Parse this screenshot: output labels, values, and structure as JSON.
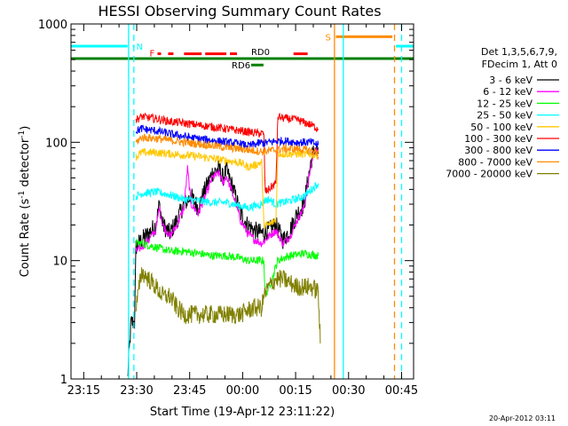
{
  "chart_data": {
    "type": "line",
    "title": "HESSI Observing Summary Count Rates",
    "xlabel": "Start Time (19-Apr-12 23:11:22)",
    "ylabel_main": "Count Rate (s",
    "ylabel_sup1": "-1",
    "ylabel_mid": " detector",
    "ylabel_sup2": "-1",
    "ylabel_end": ")",
    "y_scale": "log",
    "ylim": [
      1,
      1000
    ],
    "x_unit": "minutes since 23:11:22",
    "xlim": [
      0,
      97
    ],
    "x_ticks": [
      {
        "label": "23:15",
        "value": 3.6
      },
      {
        "label": "23:30",
        "value": 18.6
      },
      {
        "label": "23:45",
        "value": 33.6
      },
      {
        "label": "00:00",
        "value": 48.6
      },
      {
        "label": "00:15",
        "value": 63.6
      },
      {
        "label": "00:30",
        "value": 78.6
      },
      {
        "label": "00:45",
        "value": 93.6
      }
    ],
    "y_ticks": [
      {
        "label": "1",
        "value": 1
      },
      {
        "label": "10",
        "value": 10
      },
      {
        "label": "100",
        "value": 100
      },
      {
        "label": "1000",
        "value": 1000
      }
    ],
    "legend_header": [
      "Det 1,3,5,6,7,9,",
      "FDecim 1, Att 0"
    ],
    "legend_placement": "right",
    "series": [
      {
        "name": "3 - 6 keV",
        "color": "#000000",
        "points": [
          [
            16,
            1
          ],
          [
            17,
            3
          ],
          [
            18,
            3
          ],
          [
            18.4,
            13
          ],
          [
            20,
            15
          ],
          [
            22,
            17
          ],
          [
            24,
            20
          ],
          [
            25,
            30
          ],
          [
            26,
            20
          ],
          [
            28,
            17
          ],
          [
            30,
            22
          ],
          [
            32,
            30
          ],
          [
            34,
            35
          ],
          [
            36,
            28
          ],
          [
            38,
            40
          ],
          [
            40,
            55
          ],
          [
            42,
            60
          ],
          [
            43,
            50
          ],
          [
            44,
            58
          ],
          [
            46,
            40
          ],
          [
            48,
            25
          ],
          [
            50,
            20
          ],
          [
            52,
            18
          ],
          [
            54,
            17
          ],
          [
            56,
            18
          ],
          [
            58,
            20
          ],
          [
            60,
            15
          ],
          [
            62,
            18
          ],
          [
            64,
            25
          ],
          [
            66,
            30
          ],
          [
            68,
            70
          ],
          [
            69,
            90
          ],
          [
            70,
            80
          ]
        ]
      },
      {
        "name": "6 - 12 keV",
        "color": "#ff00ff",
        "points": [
          [
            18.4,
            12
          ],
          [
            20,
            13
          ],
          [
            22,
            15
          ],
          [
            24,
            18
          ],
          [
            25,
            28
          ],
          [
            26,
            20
          ],
          [
            28,
            16
          ],
          [
            30,
            20
          ],
          [
            32,
            28
          ],
          [
            33,
            60
          ],
          [
            34,
            30
          ],
          [
            36,
            25
          ],
          [
            38,
            35
          ],
          [
            40,
            50
          ],
          [
            42,
            55
          ],
          [
            43,
            45
          ],
          [
            44,
            52
          ],
          [
            46,
            35
          ],
          [
            48,
            22
          ],
          [
            50,
            17
          ],
          [
            52,
            15
          ],
          [
            54,
            14
          ],
          [
            56,
            16
          ],
          [
            58,
            18
          ],
          [
            60,
            14
          ],
          [
            62,
            16
          ],
          [
            64,
            22
          ],
          [
            66,
            28
          ],
          [
            68,
            65
          ],
          [
            69,
            90
          ],
          [
            70,
            75
          ]
        ]
      },
      {
        "name": "12 - 25 keV",
        "color": "#00ff00",
        "points": [
          [
            18.4,
            14
          ],
          [
            20,
            14
          ],
          [
            24,
            13
          ],
          [
            28,
            12
          ],
          [
            32,
            12
          ],
          [
            36,
            11.5
          ],
          [
            40,
            11
          ],
          [
            44,
            11
          ],
          [
            48,
            10.5
          ],
          [
            50,
            10
          ],
          [
            54,
            10
          ],
          [
            54.6,
            10
          ],
          [
            55,
            5
          ],
          [
            56,
            6
          ],
          [
            57,
            7
          ],
          [
            58,
            9
          ],
          [
            58.6,
            10
          ],
          [
            60,
            10.5
          ],
          [
            62,
            11
          ],
          [
            66,
            11.5
          ],
          [
            70,
            11
          ]
        ]
      },
      {
        "name": "25 - 50 keV",
        "color": "#00ffff",
        "points": [
          [
            18.4,
            35
          ],
          [
            20,
            37
          ],
          [
            24,
            38
          ],
          [
            28,
            36
          ],
          [
            32,
            33
          ],
          [
            36,
            32
          ],
          [
            40,
            31
          ],
          [
            44,
            31
          ],
          [
            48,
            29
          ],
          [
            50,
            28
          ],
          [
            54,
            30
          ],
          [
            54.6,
            32
          ],
          [
            56,
            33
          ],
          [
            58,
            30
          ],
          [
            60,
            31
          ],
          [
            62,
            32
          ],
          [
            66,
            35
          ],
          [
            70,
            45
          ]
        ]
      },
      {
        "name": "50 - 100 keV",
        "color": "#ffc800",
        "points": [
          [
            18.4,
            75
          ],
          [
            20,
            82
          ],
          [
            24,
            82
          ],
          [
            28,
            80
          ],
          [
            32,
            78
          ],
          [
            36,
            76
          ],
          [
            40,
            73
          ],
          [
            44,
            70
          ],
          [
            48,
            67
          ],
          [
            50,
            62
          ],
          [
            52,
            64
          ],
          [
            54,
            68
          ],
          [
            54.6,
            20
          ],
          [
            56,
            20
          ],
          [
            58,
            22
          ],
          [
            58.6,
            80
          ],
          [
            60,
            80
          ],
          [
            64,
            80
          ],
          [
            68,
            79
          ],
          [
            70,
            78
          ]
        ]
      },
      {
        "name": "100 - 300 keV",
        "color": "#ff0000",
        "points": [
          [
            18.4,
            155
          ],
          [
            20,
            165
          ],
          [
            24,
            158
          ],
          [
            28,
            150
          ],
          [
            32,
            145
          ],
          [
            36,
            140
          ],
          [
            40,
            135
          ],
          [
            44,
            130
          ],
          [
            48,
            125
          ],
          [
            52,
            120
          ],
          [
            54.6,
            118
          ],
          [
            55,
            38
          ],
          [
            56,
            40
          ],
          [
            58,
            45
          ],
          [
            58.6,
            165
          ],
          [
            60,
            160
          ],
          [
            64,
            155
          ],
          [
            68,
            140
          ],
          [
            70,
            130
          ]
        ]
      },
      {
        "name": "300 - 800 keV",
        "color": "#0000ff",
        "points": [
          [
            18.4,
            125
          ],
          [
            20,
            130
          ],
          [
            24,
            125
          ],
          [
            28,
            118
          ],
          [
            32,
            112
          ],
          [
            36,
            107
          ],
          [
            40,
            104
          ],
          [
            44,
            100
          ],
          [
            48,
            97
          ],
          [
            50,
            93
          ],
          [
            52,
            96
          ],
          [
            54,
            100
          ],
          [
            54.6,
            98
          ],
          [
            56,
            100
          ],
          [
            58,
            102
          ],
          [
            60,
            103
          ],
          [
            64,
            100
          ],
          [
            68,
            100
          ],
          [
            70,
            95
          ]
        ]
      },
      {
        "name": "800 - 7000 keV",
        "color": "#ff8c00",
        "points": [
          [
            18.4,
            100
          ],
          [
            20,
            110
          ],
          [
            24,
            108
          ],
          [
            28,
            104
          ],
          [
            32,
            100
          ],
          [
            36,
            97
          ],
          [
            40,
            94
          ],
          [
            44,
            90
          ],
          [
            48,
            88
          ],
          [
            52,
            85
          ],
          [
            54.6,
            83
          ],
          [
            56,
            85
          ],
          [
            58,
            86
          ],
          [
            60,
            88
          ],
          [
            64,
            88
          ],
          [
            68,
            85
          ],
          [
            70,
            82
          ]
        ]
      },
      {
        "name": "7000 - 20000 keV",
        "color": "#808000",
        "points": [
          [
            18.4,
            4
          ],
          [
            20,
            8
          ],
          [
            22,
            7
          ],
          [
            24,
            6
          ],
          [
            26,
            5
          ],
          [
            28,
            5
          ],
          [
            30,
            4
          ],
          [
            32,
            3.5
          ],
          [
            34,
            3.5
          ],
          [
            36,
            3.5
          ],
          [
            40,
            3.5
          ],
          [
            44,
            3.5
          ],
          [
            48,
            3.5
          ],
          [
            50,
            3.8
          ],
          [
            52,
            4
          ],
          [
            54,
            4
          ],
          [
            54.6,
            5
          ],
          [
            56,
            6
          ],
          [
            58,
            7
          ],
          [
            60,
            7
          ],
          [
            64,
            6
          ],
          [
            68,
            6
          ],
          [
            70,
            5.5
          ],
          [
            70.6,
            2
          ]
        ]
      }
    ],
    "flags": [
      {
        "label": "N",
        "color": "#00ffff",
        "y": 650,
        "segments": [
          [
            0,
            16
          ],
          [
            17.5,
            18
          ]
        ]
      },
      {
        "label": "F",
        "color": "#ff0000",
        "y": 560,
        "segments": [
          [
            24.5,
            25.5
          ],
          [
            27.5,
            29
          ],
          [
            32,
            37
          ],
          [
            38,
            44
          ],
          [
            45,
            47
          ],
          [
            63,
            67
          ]
        ]
      },
      {
        "label": "S",
        "color": "#ff8c00",
        "y": 780,
        "segments": [
          [
            75,
            91
          ]
        ]
      },
      {
        "label": "",
        "color": "#00ffff",
        "y": 650,
        "segments": [
          [
            92,
            97
          ]
        ]
      },
      {
        "label": "RD0",
        "color": "#008000",
        "y": 510,
        "segments": [
          [
            0,
            97
          ]
        ]
      },
      {
        "label": "RD6",
        "color": "#008000",
        "y": 450,
        "segments": [
          [
            51,
            54.5
          ]
        ]
      }
    ],
    "vlines": [
      {
        "x": 16.3,
        "color": "#00ffff",
        "style": "solid"
      },
      {
        "x": 17.8,
        "color": "#00ffff",
        "style": "dashed"
      },
      {
        "x": 74.6,
        "color": "#ff8c00",
        "style": "solid"
      },
      {
        "x": 77.1,
        "color": "#00ffff",
        "style": "solid"
      },
      {
        "x": 91.6,
        "color": "#ff8c00",
        "style": "dashed"
      },
      {
        "x": 93.6,
        "color": "#00ffff",
        "style": "dashed"
      }
    ]
  },
  "footer": {
    "timestamp": "20-Apr-2012 03:11"
  }
}
